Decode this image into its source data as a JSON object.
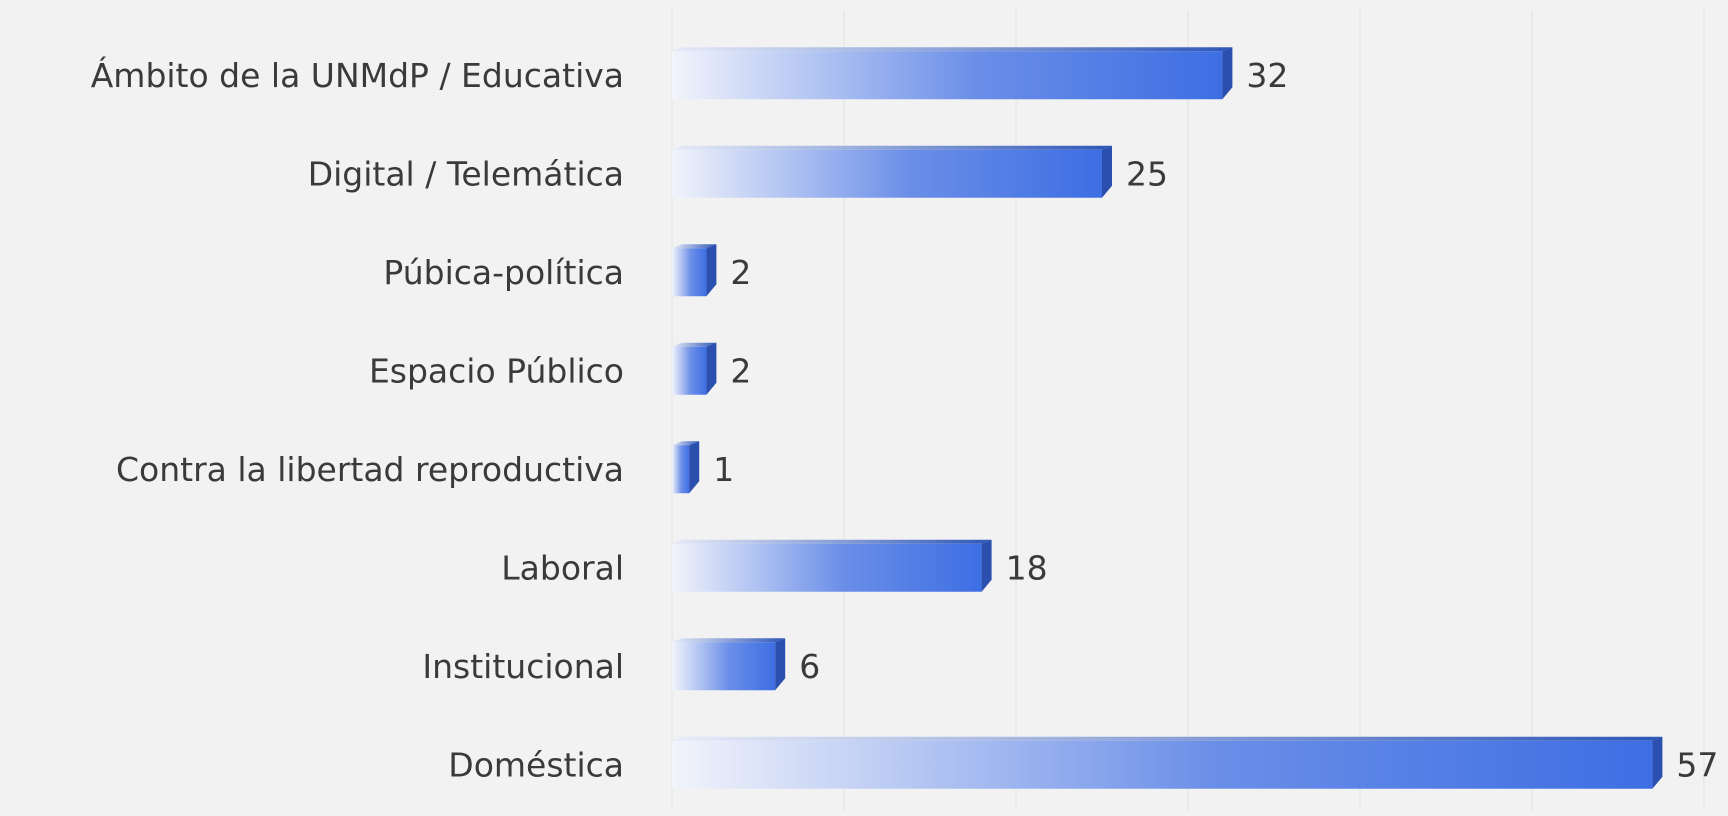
{
  "chart_data": {
    "type": "hbar",
    "categories": [
      "Ámbito de la UNMdP / Educativa",
      "Digital / Telemática",
      "Púbica-política",
      "Espacio Público",
      "Contra la libertad reproductiva",
      "Laboral",
      "Institucional",
      "Doméstica"
    ],
    "values": [
      32,
      25,
      2,
      2,
      1,
      18,
      6,
      57
    ],
    "color": "#3d6ee3",
    "xlim": [
      0,
      60
    ],
    "xticks": [
      0,
      10,
      20,
      30,
      40,
      50,
      60
    ],
    "grid": true
  }
}
